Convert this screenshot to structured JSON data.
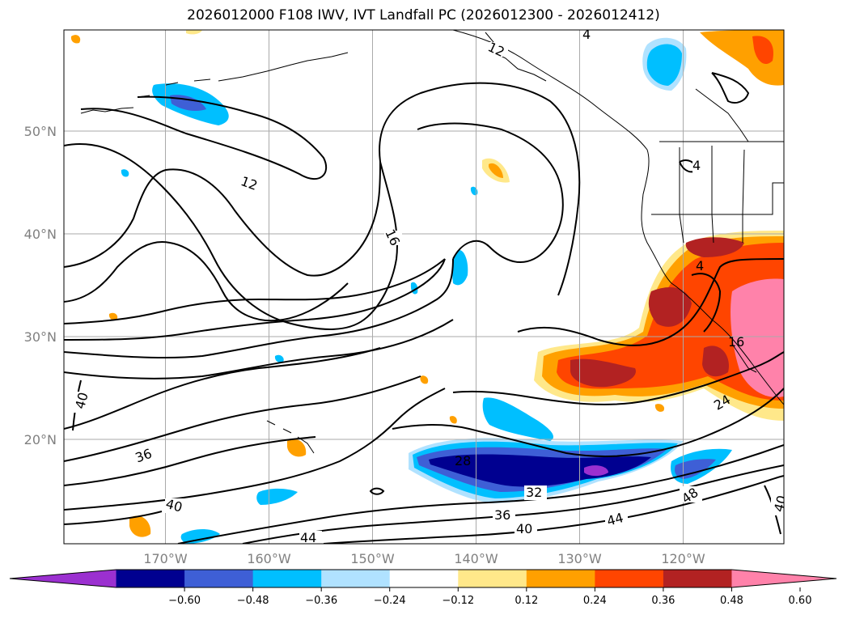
{
  "title": "2026012000 F108 IWV, IVT Landfall PC (2026012300 - 2026012412)",
  "map": {
    "lat_ticks": [
      {
        "lat": 50,
        "label": "50°N"
      },
      {
        "lat": 40,
        "label": "40°N"
      },
      {
        "lat": 30,
        "label": "30°N"
      },
      {
        "lat": 20,
        "label": "20°N"
      }
    ],
    "lon_ticks": [
      {
        "lon": -170,
        "label": "170°W"
      },
      {
        "lon": -160,
        "label": "160°W"
      },
      {
        "lon": -150,
        "label": "150°W"
      },
      {
        "lon": -140,
        "label": "140°W"
      },
      {
        "lon": -130,
        "label": "130°W"
      },
      {
        "lon": -120,
        "label": "120°W"
      }
    ],
    "contour_labels": [
      "12",
      "16",
      "12",
      "4",
      "4",
      "40",
      "36",
      "40",
      "44",
      "28",
      "32",
      "36",
      "40",
      "44",
      "48",
      "40",
      "24",
      "16",
      "4"
    ]
  },
  "colorbar": {
    "levels": [
      "−0.60",
      "−0.48",
      "−0.36",
      "−0.24",
      "−0.12",
      "0.12",
      "0.24",
      "0.36",
      "0.48",
      "0.60"
    ],
    "colors": [
      "#9b30d0",
      "#000090",
      "#3e5fd6",
      "#00bfff",
      "#b0e2ff",
      "#ffffff",
      "#ffe88a",
      "#ffa000",
      "#ff4500",
      "#b22222",
      "#ff82aa"
    ]
  }
}
